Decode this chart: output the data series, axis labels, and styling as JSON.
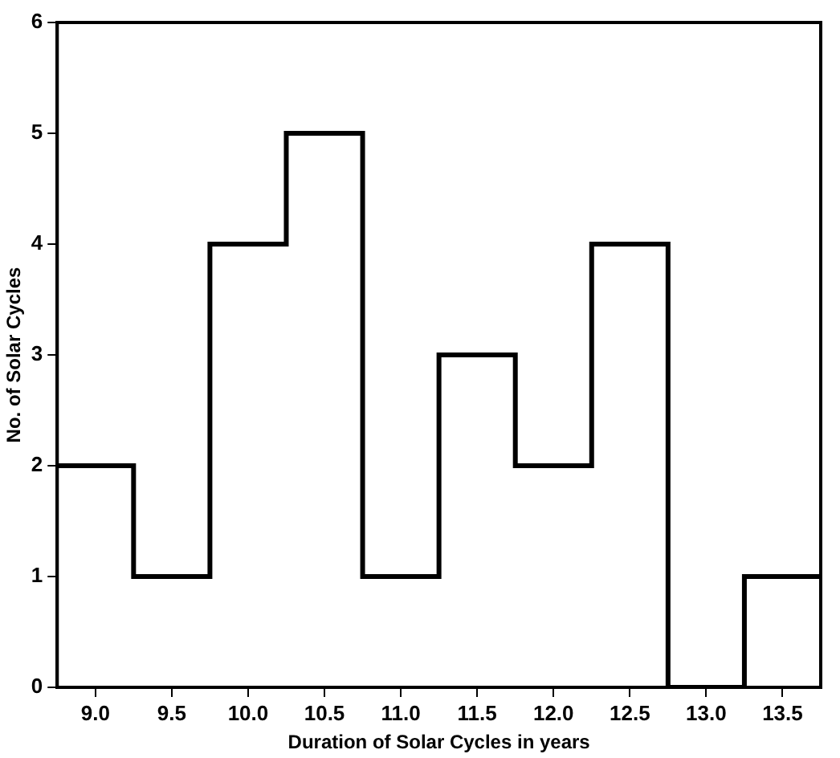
{
  "chart_data": {
    "type": "histogram",
    "xlabel": "Duration of Solar Cycles in years",
    "ylabel": "No. of Solar Cycles",
    "color": "#000000",
    "bins": [
      8.75,
      9.25,
      9.75,
      10.25,
      10.75,
      11.25,
      11.75,
      12.25,
      12.75,
      13.25,
      13.75
    ],
    "values": [
      2,
      1,
      4,
      5,
      1,
      3,
      2,
      4,
      0,
      1
    ],
    "xlim": [
      8.75,
      13.75
    ],
    "xticks": [
      {
        "value": 9,
        "label": "9.0"
      },
      {
        "value": 9.5,
        "label": "9.5"
      },
      {
        "value": 10,
        "label": "10.0"
      },
      {
        "value": 10.5,
        "label": "10.5"
      },
      {
        "value": 11,
        "label": "11.0"
      },
      {
        "value": 11.5,
        "label": "11.5"
      },
      {
        "value": 12,
        "label": "12.0"
      },
      {
        "value": 12.5,
        "label": "12.5"
      },
      {
        "value": 13,
        "label": "13.0"
      },
      {
        "value": 13.5,
        "label": "13.5"
      }
    ],
    "ylim": [
      0,
      6
    ],
    "yticks": [
      0,
      1,
      2,
      3,
      4,
      5,
      6
    ],
    "grid": false,
    "legend": false
  }
}
